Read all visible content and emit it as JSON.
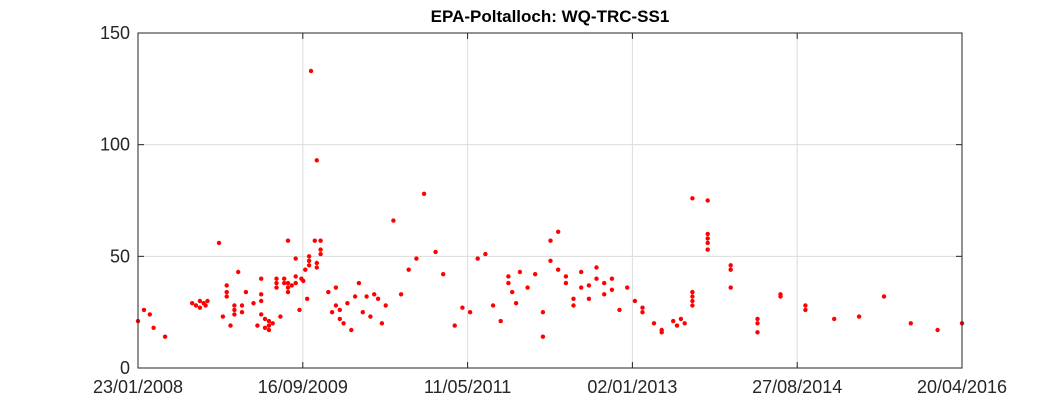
{
  "chart_data": {
    "type": "scatter",
    "title": "EPA-Poltalloch: WQ-TRC-SS1",
    "xlabel": "",
    "ylabel": "",
    "x_axis_type": "date",
    "xlim": [
      "2008-01-23",
      "2016-04-20"
    ],
    "ylim": [
      0,
      150
    ],
    "x_ticks": [
      {
        "date": "2008-01-23",
        "label": "23/01/2008"
      },
      {
        "date": "2009-09-16",
        "label": "16/09/2009"
      },
      {
        "date": "2011-05-11",
        "label": "11/05/2011"
      },
      {
        "date": "2013-01-02",
        "label": "02/01/2013"
      },
      {
        "date": "2014-08-27",
        "label": "27/08/2014"
      },
      {
        "date": "2016-04-20",
        "label": "20/04/2016"
      }
    ],
    "y_ticks": [
      0,
      50,
      100,
      150
    ],
    "grid": true,
    "marker": "dot",
    "series": [
      {
        "color": "#ff0000",
        "points": [
          [
            "2008-01-23",
            21
          ],
          [
            "2008-02-14",
            26
          ],
          [
            "2008-03-06",
            24
          ],
          [
            "2008-03-20",
            18
          ],
          [
            "2008-05-01",
            14
          ],
          [
            "2008-08-08",
            29
          ],
          [
            "2008-08-22",
            28
          ],
          [
            "2008-09-05",
            30
          ],
          [
            "2008-09-05",
            27
          ],
          [
            "2008-09-19",
            29
          ],
          [
            "2008-09-26",
            28
          ],
          [
            "2008-10-03",
            30
          ],
          [
            "2008-11-14",
            56
          ],
          [
            "2008-11-28",
            23
          ],
          [
            "2008-12-12",
            37
          ],
          [
            "2008-12-12",
            34
          ],
          [
            "2008-12-12",
            32
          ],
          [
            "2008-12-26",
            19
          ],
          [
            "2009-01-09",
            28
          ],
          [
            "2009-01-09",
            26
          ],
          [
            "2009-01-09",
            24
          ],
          [
            "2009-01-23",
            43
          ],
          [
            "2009-02-06",
            28
          ],
          [
            "2009-02-06",
            25
          ],
          [
            "2009-02-20",
            34
          ],
          [
            "2009-03-20",
            29
          ],
          [
            "2009-04-03",
            19
          ],
          [
            "2009-04-17",
            40
          ],
          [
            "2009-04-17",
            33
          ],
          [
            "2009-04-17",
            30
          ],
          [
            "2009-04-17",
            24
          ],
          [
            "2009-05-01",
            22
          ],
          [
            "2009-05-01",
            18
          ],
          [
            "2009-05-15",
            21
          ],
          [
            "2009-05-15",
            19
          ],
          [
            "2009-05-15",
            17
          ],
          [
            "2009-05-29",
            20
          ],
          [
            "2009-06-12",
            40
          ],
          [
            "2009-06-12",
            38
          ],
          [
            "2009-06-12",
            36
          ],
          [
            "2009-06-26",
            23
          ],
          [
            "2009-07-10",
            40
          ],
          [
            "2009-07-10",
            38
          ],
          [
            "2009-07-24",
            57
          ],
          [
            "2009-07-24",
            38
          ],
          [
            "2009-07-24",
            36
          ],
          [
            "2009-07-24",
            34
          ],
          [
            "2009-08-07",
            37
          ],
          [
            "2009-08-21",
            49
          ],
          [
            "2009-08-21",
            41
          ],
          [
            "2009-08-21",
            38
          ],
          [
            "2009-09-04",
            26
          ],
          [
            "2009-09-11",
            40
          ],
          [
            "2009-09-18",
            39
          ],
          [
            "2009-09-25",
            44
          ],
          [
            "2009-10-02",
            31
          ],
          [
            "2009-10-09",
            50
          ],
          [
            "2009-10-09",
            48
          ],
          [
            "2009-10-09",
            46
          ],
          [
            "2009-10-16",
            133
          ],
          [
            "2009-10-30",
            57
          ],
          [
            "2009-11-06",
            93
          ],
          [
            "2009-11-06",
            47
          ],
          [
            "2009-11-06",
            45
          ],
          [
            "2009-11-20",
            57
          ],
          [
            "2009-11-20",
            53
          ],
          [
            "2009-11-20",
            51
          ],
          [
            "2009-12-18",
            34
          ],
          [
            "2010-01-01",
            25
          ],
          [
            "2010-01-15",
            28
          ],
          [
            "2010-01-15",
            36
          ],
          [
            "2010-01-29",
            26
          ],
          [
            "2010-01-29",
            22
          ],
          [
            "2010-02-12",
            20
          ],
          [
            "2010-02-26",
            29
          ],
          [
            "2010-03-12",
            17
          ],
          [
            "2010-03-26",
            32
          ],
          [
            "2010-04-09",
            38
          ],
          [
            "2010-04-23",
            25
          ],
          [
            "2010-05-07",
            32
          ],
          [
            "2010-05-21",
            23
          ],
          [
            "2010-06-04",
            33
          ],
          [
            "2010-06-18",
            31
          ],
          [
            "2010-07-02",
            20
          ],
          [
            "2010-07-16",
            28
          ],
          [
            "2010-08-13",
            66
          ],
          [
            "2010-09-10",
            33
          ],
          [
            "2010-10-08",
            44
          ],
          [
            "2010-11-05",
            49
          ],
          [
            "2010-12-03",
            78
          ],
          [
            "2011-01-14",
            52
          ],
          [
            "2011-02-11",
            42
          ],
          [
            "2011-03-25",
            19
          ],
          [
            "2011-04-22",
            27
          ],
          [
            "2011-05-20",
            25
          ],
          [
            "2011-06-17",
            49
          ],
          [
            "2011-07-15",
            51
          ],
          [
            "2011-08-12",
            28
          ],
          [
            "2011-09-09",
            21
          ],
          [
            "2011-10-07",
            41
          ],
          [
            "2011-10-07",
            38
          ],
          [
            "2011-10-21",
            34
          ],
          [
            "2011-11-04",
            29
          ],
          [
            "2011-11-18",
            43
          ],
          [
            "2011-12-16",
            36
          ],
          [
            "2012-01-13",
            42
          ],
          [
            "2012-02-10",
            25
          ],
          [
            "2012-02-10",
            14
          ],
          [
            "2012-03-09",
            57
          ],
          [
            "2012-03-09",
            48
          ],
          [
            "2012-04-06",
            61
          ],
          [
            "2012-04-06",
            44
          ],
          [
            "2012-05-04",
            41
          ],
          [
            "2012-05-04",
            38
          ],
          [
            "2012-06-01",
            31
          ],
          [
            "2012-06-01",
            28
          ],
          [
            "2012-06-29",
            43
          ],
          [
            "2012-06-29",
            36
          ],
          [
            "2012-07-27",
            31
          ],
          [
            "2012-07-27",
            37
          ],
          [
            "2012-08-24",
            45
          ],
          [
            "2012-08-24",
            40
          ],
          [
            "2012-09-21",
            33
          ],
          [
            "2012-09-21",
            38
          ],
          [
            "2012-10-19",
            40
          ],
          [
            "2012-10-19",
            35
          ],
          [
            "2012-11-16",
            26
          ],
          [
            "2012-12-14",
            36
          ],
          [
            "2013-01-11",
            30
          ],
          [
            "2013-02-08",
            27
          ],
          [
            "2013-02-08",
            25
          ],
          [
            "2013-03-22",
            20
          ],
          [
            "2013-04-19",
            16
          ],
          [
            "2013-04-19",
            17
          ],
          [
            "2013-05-31",
            21
          ],
          [
            "2013-06-14",
            19
          ],
          [
            "2013-06-28",
            22
          ],
          [
            "2013-07-12",
            20
          ],
          [
            "2013-08-09",
            76
          ],
          [
            "2013-08-09",
            34
          ],
          [
            "2013-08-09",
            32
          ],
          [
            "2013-08-09",
            30
          ],
          [
            "2013-08-09",
            28
          ],
          [
            "2013-10-04",
            75
          ],
          [
            "2013-10-04",
            60
          ],
          [
            "2013-10-04",
            58
          ],
          [
            "2013-10-04",
            56
          ],
          [
            "2013-10-04",
            53
          ],
          [
            "2013-12-27",
            46
          ],
          [
            "2013-12-27",
            44
          ],
          [
            "2013-12-27",
            36
          ],
          [
            "2014-04-04",
            22
          ],
          [
            "2014-04-04",
            20
          ],
          [
            "2014-04-04",
            16
          ],
          [
            "2014-06-27",
            33
          ],
          [
            "2014-06-27",
            32
          ],
          [
            "2014-09-26",
            28
          ],
          [
            "2014-09-26",
            26
          ],
          [
            "2015-01-09",
            22
          ],
          [
            "2015-04-10",
            23
          ],
          [
            "2015-07-10",
            32
          ],
          [
            "2015-10-16",
            20
          ],
          [
            "2016-01-22",
            17
          ],
          [
            "2016-04-20",
            20
          ]
        ]
      }
    ]
  }
}
